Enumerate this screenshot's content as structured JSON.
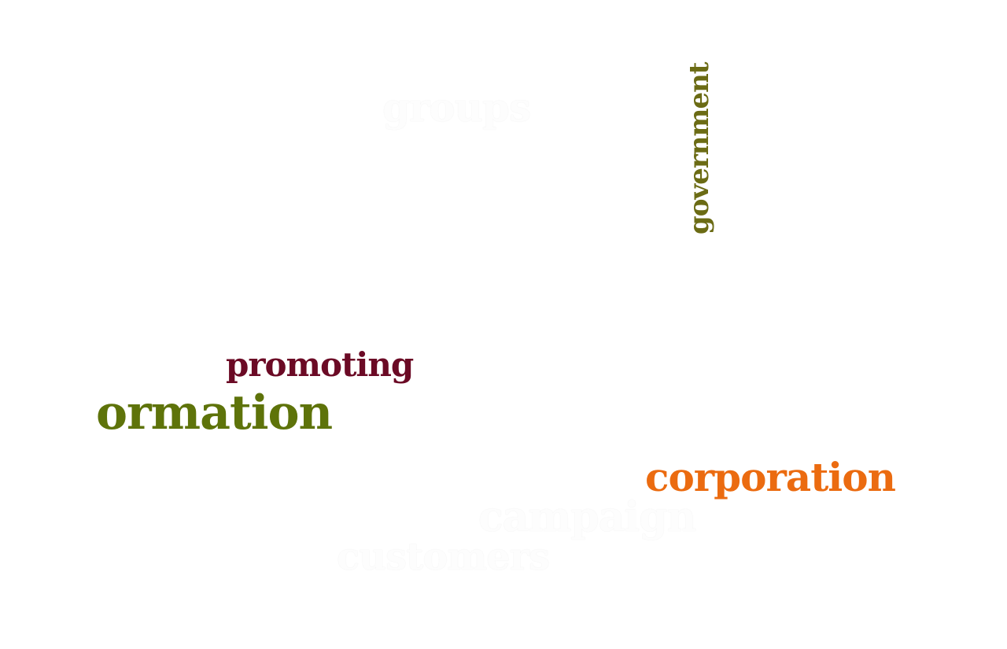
{
  "word_cloud": {
    "words": [
      {
        "id": "groups",
        "text": "groups",
        "color": "#fdfdfd"
      },
      {
        "id": "government",
        "text": "government",
        "color": "#6b6b14"
      },
      {
        "id": "promoting",
        "text": "promoting",
        "color": "#6b0a25"
      },
      {
        "id": "ormation",
        "text": "ormation",
        "color": "#5e730a"
      },
      {
        "id": "corporation",
        "text": "corporation",
        "color": "#eb6b10"
      },
      {
        "id": "campaign",
        "text": "campaign",
        "color": "#fdfdfd"
      },
      {
        "id": "customers",
        "text": "customers",
        "color": "#fdfdfd"
      }
    ]
  }
}
